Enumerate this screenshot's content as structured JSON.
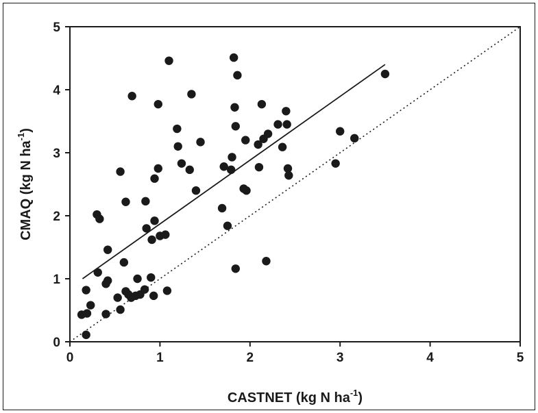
{
  "chart_data": {
    "type": "scatter",
    "title": "",
    "xlabel": "CASTNET (kg N ha",
    "xlabel_sup": "-1",
    "xlabel_tail": ")",
    "ylabel": "CMAQ (kg N ha",
    "ylabel_sup": "-1",
    "ylabel_tail": ")",
    "xlim": [
      0,
      5
    ],
    "ylim": [
      0,
      5
    ],
    "x_ticks": [
      "0",
      "1",
      "2",
      "3",
      "4",
      "5"
    ],
    "y_ticks": [
      "0",
      "1",
      "2",
      "3",
      "4",
      "5"
    ],
    "grid": false,
    "legend": "none",
    "marker_color": "#1a1a1a",
    "series": [
      {
        "points": [
          [
            0.13,
            0.43
          ],
          [
            0.18,
            0.82
          ],
          [
            0.19,
            0.45
          ],
          [
            0.18,
            0.11
          ],
          [
            0.23,
            0.58
          ],
          [
            0.3,
            2.02
          ],
          [
            0.31,
            1.1
          ],
          [
            0.33,
            1.95
          ],
          [
            0.4,
            0.92
          ],
          [
            0.4,
            0.44
          ],
          [
            0.42,
            0.97
          ],
          [
            0.42,
            1.46
          ],
          [
            0.53,
            0.7
          ],
          [
            0.56,
            0.51
          ],
          [
            0.56,
            2.7
          ],
          [
            0.6,
            1.26
          ],
          [
            0.62,
            2.22
          ],
          [
            0.62,
            0.8
          ],
          [
            0.65,
            0.75
          ],
          [
            0.68,
            0.7
          ],
          [
            0.69,
            3.9
          ],
          [
            0.73,
            0.73
          ],
          [
            0.75,
            1.0
          ],
          [
            0.78,
            0.75
          ],
          [
            0.83,
            0.83
          ],
          [
            0.84,
            2.23
          ],
          [
            0.85,
            1.8
          ],
          [
            0.9,
            1.02
          ],
          [
            0.91,
            1.62
          ],
          [
            0.94,
            1.92
          ],
          [
            0.93,
            0.73
          ],
          [
            0.94,
            2.59
          ],
          [
            0.98,
            2.75
          ],
          [
            0.98,
            3.77
          ],
          [
            1.0,
            1.68
          ],
          [
            1.06,
            1.7
          ],
          [
            1.08,
            0.81
          ],
          [
            1.1,
            4.46
          ],
          [
            1.19,
            3.38
          ],
          [
            1.2,
            3.1
          ],
          [
            1.24,
            2.83
          ],
          [
            1.33,
            2.73
          ],
          [
            1.35,
            3.93
          ],
          [
            1.4,
            2.4
          ],
          [
            1.45,
            3.17
          ],
          [
            1.69,
            2.12
          ],
          [
            1.71,
            2.78
          ],
          [
            1.75,
            1.84
          ],
          [
            1.79,
            2.73
          ],
          [
            1.8,
            2.93
          ],
          [
            1.82,
            4.51
          ],
          [
            1.83,
            3.72
          ],
          [
            1.84,
            3.42
          ],
          [
            1.84,
            1.16
          ],
          [
            1.86,
            4.23
          ],
          [
            1.93,
            2.43
          ],
          [
            1.95,
            3.2
          ],
          [
            1.96,
            2.4
          ],
          [
            2.09,
            3.13
          ],
          [
            2.1,
            2.77
          ],
          [
            2.13,
            3.77
          ],
          [
            2.15,
            3.22
          ],
          [
            2.18,
            1.28
          ],
          [
            2.2,
            3.3
          ],
          [
            2.31,
            3.45
          ],
          [
            2.36,
            3.09
          ],
          [
            2.4,
            3.66
          ],
          [
            2.41,
            3.45
          ],
          [
            2.42,
            2.75
          ],
          [
            2.43,
            2.64
          ],
          [
            2.95,
            2.83
          ],
          [
            3.0,
            3.34
          ],
          [
            3.16,
            3.23
          ],
          [
            3.5,
            4.25
          ]
        ]
      }
    ],
    "lines": [
      {
        "kind": "regression",
        "style": "solid",
        "x": [
          0.14,
          3.5
        ],
        "y": [
          1.0,
          4.4
        ]
      },
      {
        "kind": "one-to-one",
        "style": "dotted",
        "x": [
          0.0,
          5.0
        ],
        "y": [
          0.0,
          5.0
        ]
      }
    ]
  }
}
